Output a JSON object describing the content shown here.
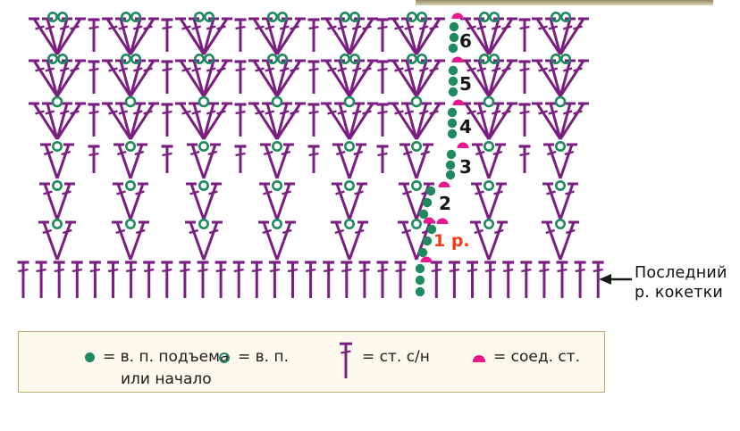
{
  "colors": {
    "purple": "#7b1e81",
    "green": "#1e8a5e",
    "pink": "#e9188c",
    "red": "#ee3d16",
    "label": "#161616",
    "text": "#1c1c1c",
    "legend_bg": "#fdf9ec",
    "legend_border": "#b9ab6e"
  },
  "diagram": {
    "type": "crochet-stitch-chart",
    "rows_top_to_bottom": [
      {
        "label": "6",
        "symbol": "fan-4dc-2ch",
        "count": 8,
        "posts_between": true
      },
      {
        "label": "5",
        "symbol": "fan-4dc-2ch",
        "count": 8,
        "posts_between": true
      },
      {
        "label": "4",
        "symbol": "fan-4dc-1ch",
        "count": 8,
        "posts_between": true
      },
      {
        "label": "3",
        "symbol": "v-stitch-1ch",
        "count": 8,
        "posts_between": true
      },
      {
        "label": "2",
        "symbol": "v-stitch-1ch",
        "count": 8,
        "posts_between": false
      },
      {
        "label": "1 р.",
        "symbol": "v-stitch-1ch",
        "count": 8,
        "posts_between": false,
        "label_color": "red"
      }
    ],
    "foundation_row": {
      "symbol": "dc-post",
      "count": 32
    },
    "turning_chain": {
      "chain_dots_per_row": 3,
      "base_chain_dots": 3,
      "slip_stitch_marks": 8
    }
  },
  "annotation": {
    "line1": "Последний",
    "line2": "р. кокетки"
  },
  "legend": {
    "items": [
      {
        "symbol": "chain-filled-dot",
        "label_line1": "= в. п. подъема",
        "label_line2": "или начало"
      },
      {
        "symbol": "chain-open-circle",
        "label_line1": "= в. п."
      },
      {
        "symbol": "double-crochet-post",
        "label_line1": "= ст. с/н"
      },
      {
        "symbol": "slip-stitch-dome",
        "label_line1": "= соед. ст."
      }
    ]
  }
}
